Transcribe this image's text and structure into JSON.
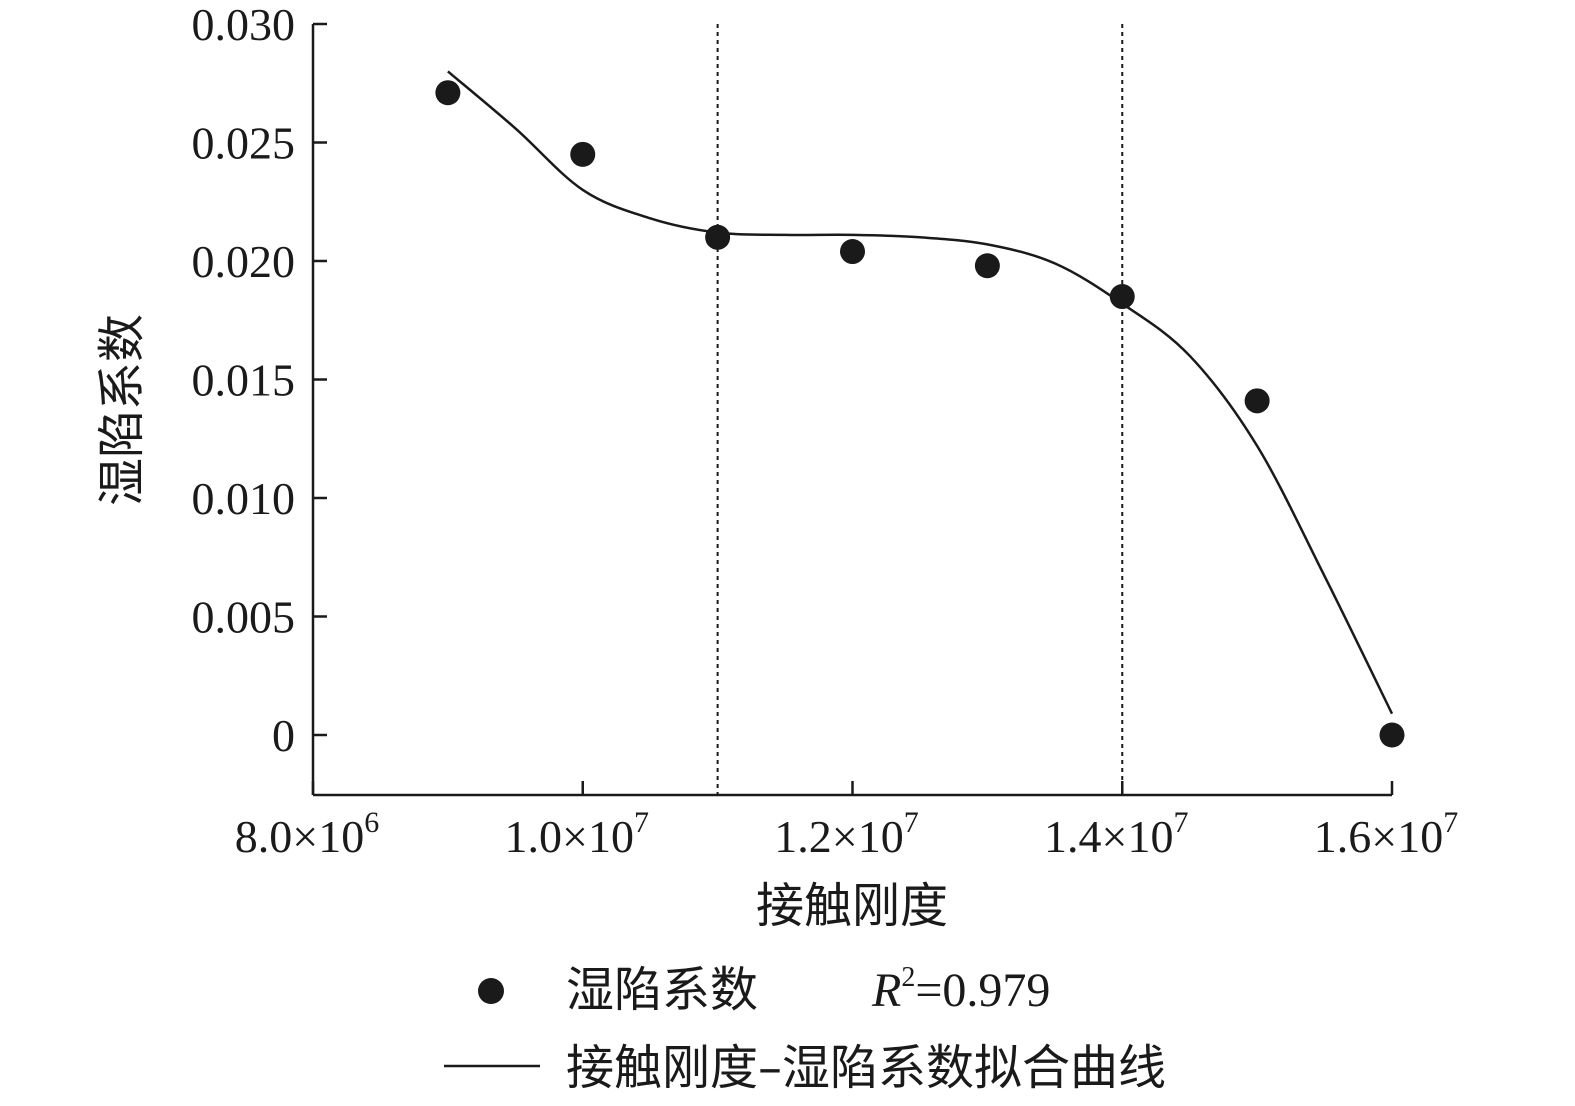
{
  "chart_data": {
    "type": "scatter",
    "xlabel": "接触刚度",
    "ylabel": "湿陷系数",
    "xlim": [
      8000000,
      16000000
    ],
    "ylim": [
      -0.0025,
      0.03
    ],
    "x_ticks": [
      {
        "value": 8000000,
        "mantissa": "8.0×10",
        "exp": "6"
      },
      {
        "value": 10000000,
        "mantissa": "1.0×10",
        "exp": "7"
      },
      {
        "value": 12000000,
        "mantissa": "1.2×10",
        "exp": "7"
      },
      {
        "value": 14000000,
        "mantissa": "1.4×10",
        "exp": "7"
      },
      {
        "value": 16000000,
        "mantissa": "1.6×10",
        "exp": "7"
      }
    ],
    "y_ticks": [
      {
        "value": 0,
        "label": "0"
      },
      {
        "value": 0.005,
        "label": "0.005"
      },
      {
        "value": 0.01,
        "label": "0.010"
      },
      {
        "value": 0.015,
        "label": "0.015"
      },
      {
        "value": 0.02,
        "label": "0.020"
      },
      {
        "value": 0.025,
        "label": "0.025"
      },
      {
        "value": 0.03,
        "label": "0.030"
      }
    ],
    "grid": false,
    "reference_lines_x": [
      11000000,
      14000000
    ],
    "series": [
      {
        "name": "湿陷系数",
        "kind": "scatter",
        "x": [
          9000000,
          10000000,
          11000000,
          12000000,
          13000000,
          14000000,
          15000000,
          16000000
        ],
        "y": [
          0.0271,
          0.0245,
          0.021,
          0.0204,
          0.0198,
          0.0185,
          0.0141,
          0.0
        ]
      },
      {
        "name": "接触刚度–湿陷系数拟合曲线",
        "kind": "line",
        "x": [
          9000000,
          9500000,
          10000000,
          10500000,
          11000000,
          11500000,
          12000000,
          12500000,
          13000000,
          13500000,
          14000000,
          14500000,
          15000000,
          15500000,
          16000000
        ],
        "y": [
          0.028,
          0.0256,
          0.023,
          0.0218,
          0.0212,
          0.0211,
          0.0211,
          0.021,
          0.0207,
          0.0199,
          0.0182,
          0.016,
          0.0122,
          0.0067,
          0.0009
        ]
      }
    ],
    "legend": {
      "placement": "bottom",
      "scatter_label": "湿陷系数",
      "r2_symbol": "R",
      "r2_exp": "2",
      "r2_value": "=0.979",
      "line_label": "接触刚度–湿陷系数拟合曲线"
    }
  }
}
